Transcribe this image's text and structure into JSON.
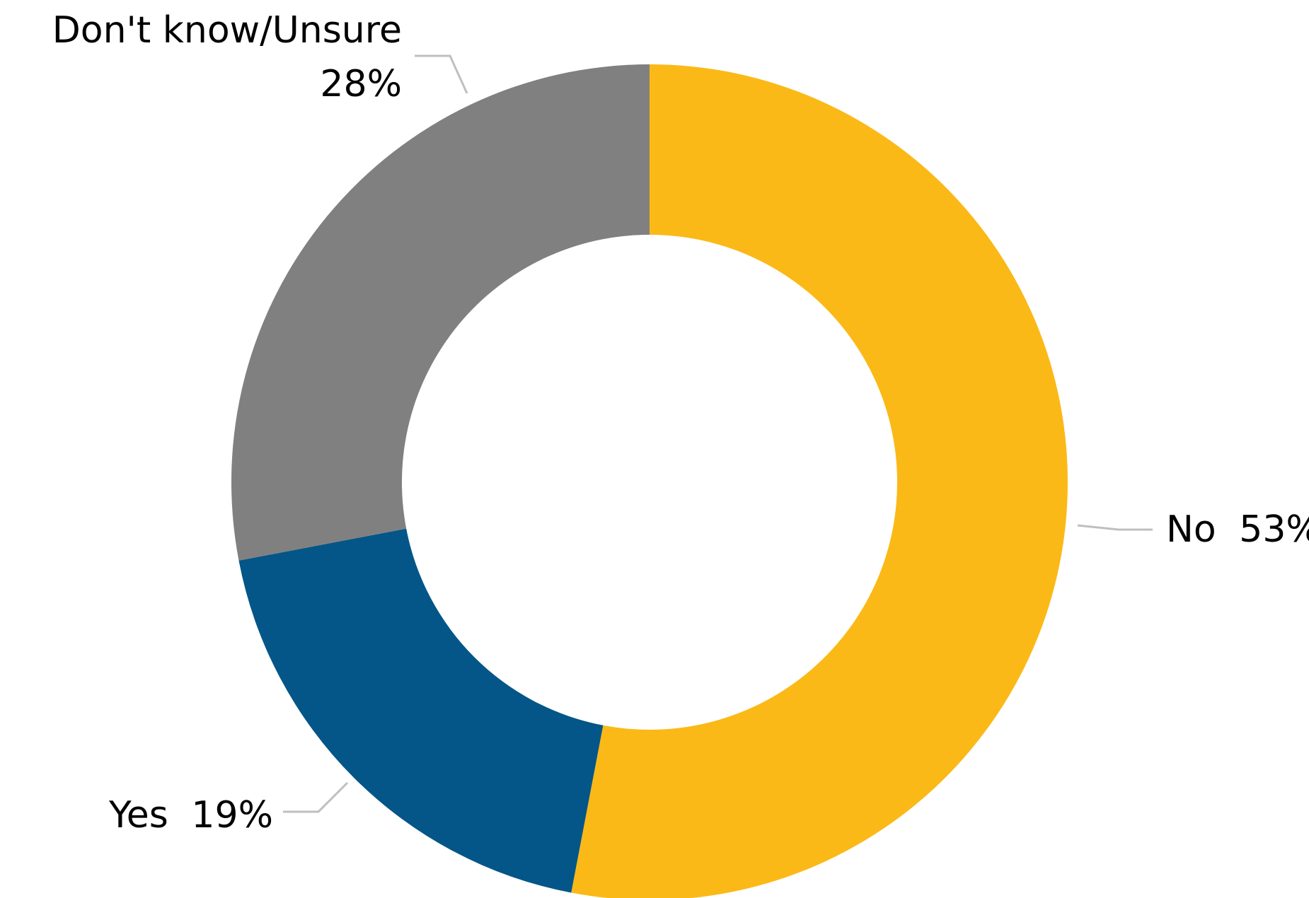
{
  "chart_data": {
    "type": "pie",
    "variant": "donut",
    "title": "",
    "start_angle_deg": 0,
    "direction": "clockwise",
    "legend": "none",
    "slices": [
      {
        "label": "No",
        "value": 53,
        "value_text": "53%",
        "color": "#FBB917"
      },
      {
        "label": "Yes",
        "value": 19,
        "value_text": "19%",
        "color": "#035687"
      },
      {
        "label": "Don't know/Unsure",
        "value": 28,
        "value_text": "28%",
        "color": "#808080"
      }
    ],
    "leader_line_color": "#BFBFBF"
  }
}
